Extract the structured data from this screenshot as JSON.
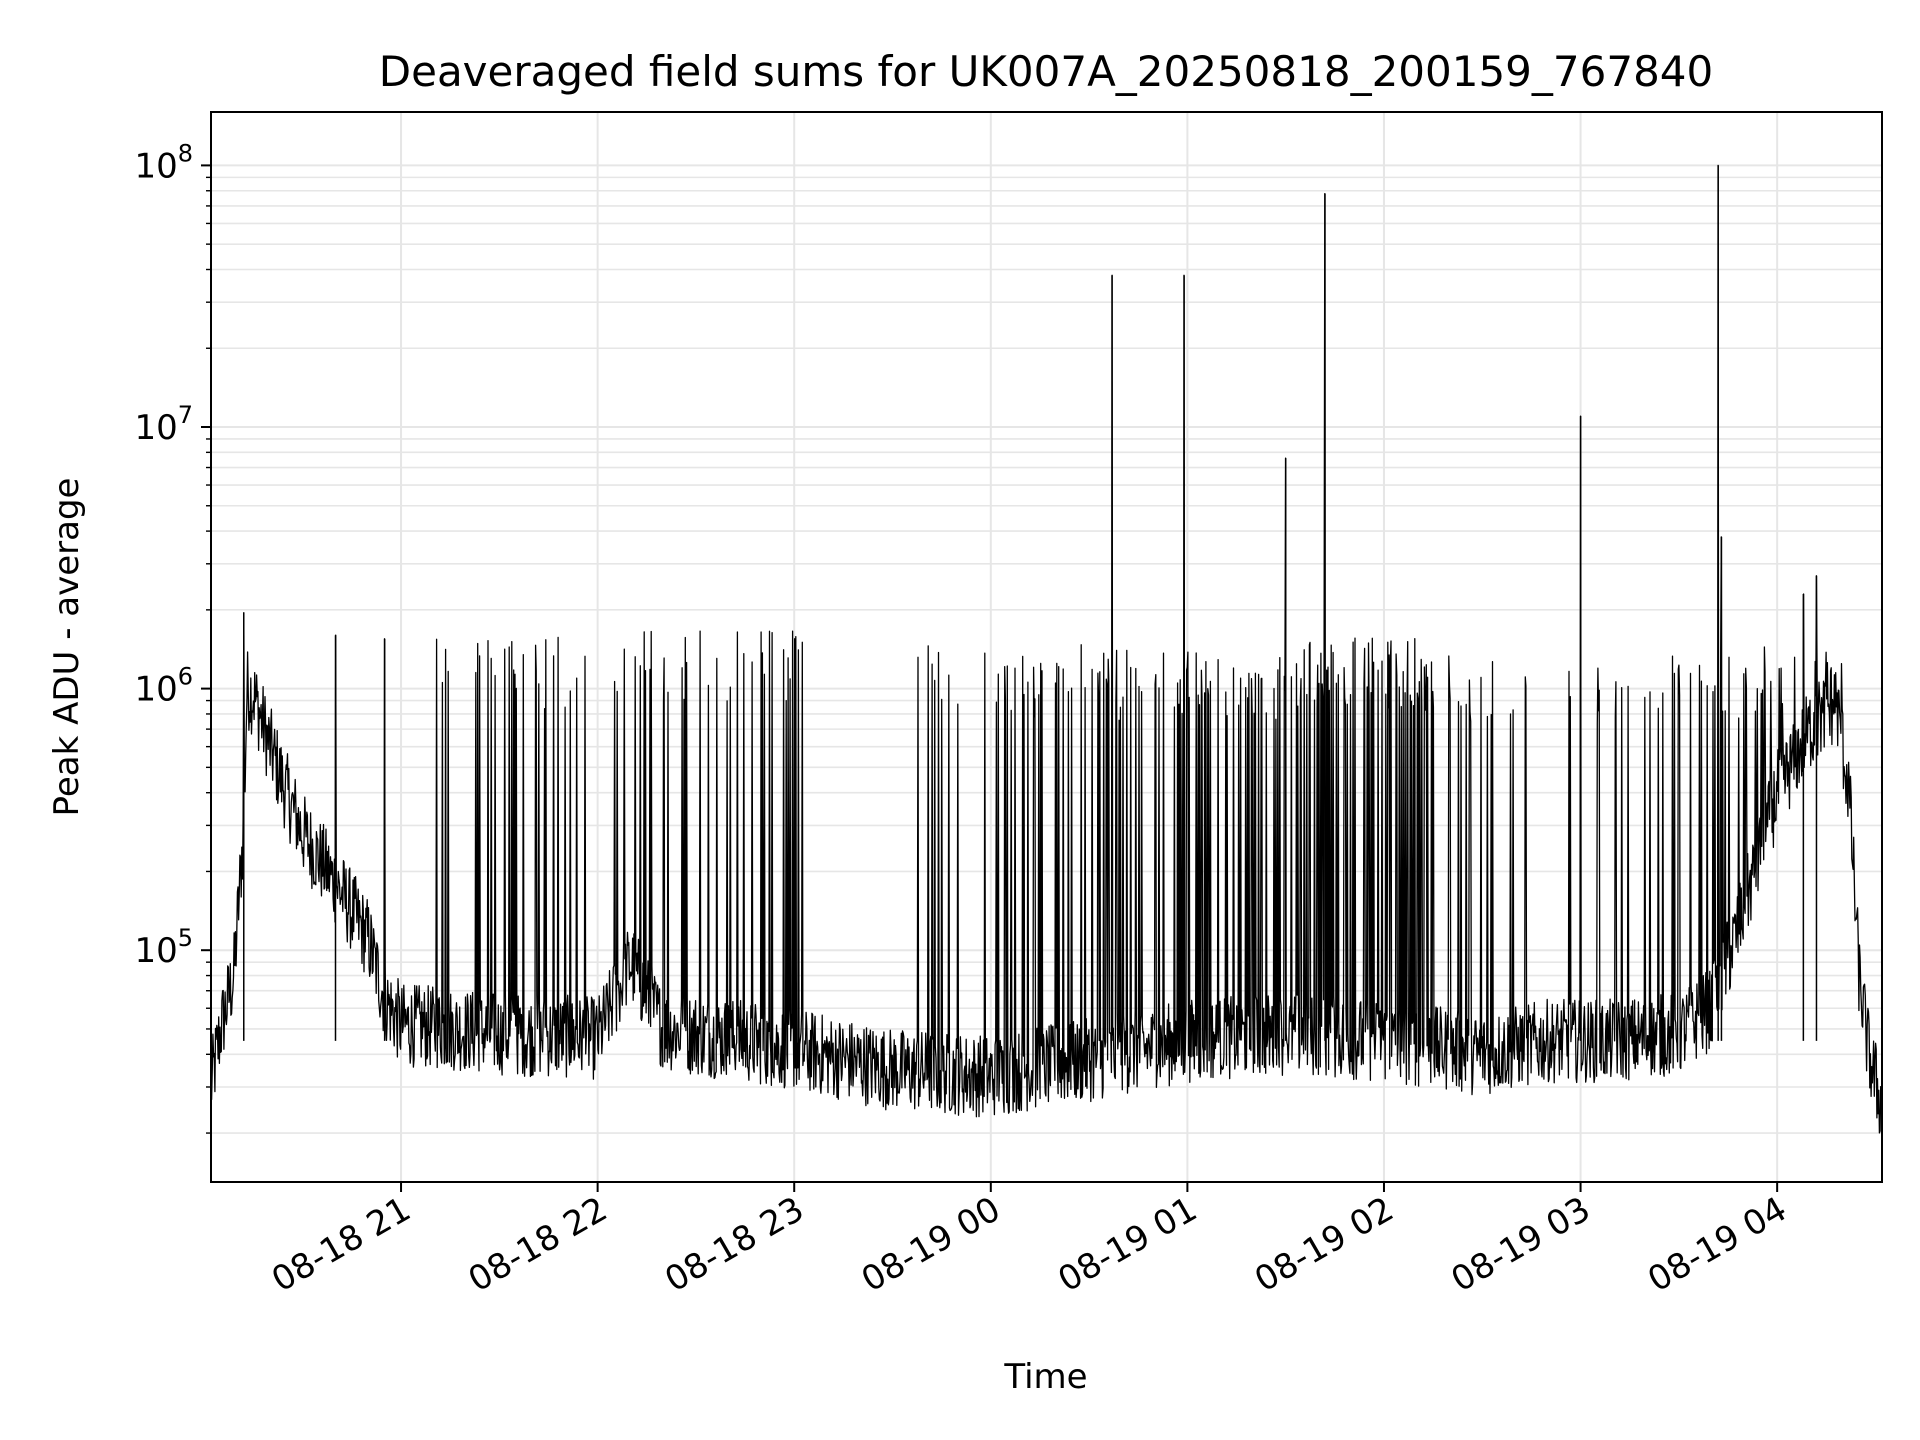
{
  "chart_data": {
    "type": "line",
    "title": "Deaveraged field sums for UK007A_20250818_200159_767840",
    "xlabel": "Time",
    "ylabel": "Peak ADU - average",
    "yscale": "log",
    "ylim": [
      13000,
      160000000
    ],
    "xlim": [
      "2025-08-18 20:02",
      "2025-08-19 04:32"
    ],
    "grid": true,
    "legend": "none",
    "line_color": "#000000",
    "x_ticks": [
      {
        "t": "2025-08-18 21:00",
        "label": "08-18 21"
      },
      {
        "t": "2025-08-18 22:00",
        "label": "08-18 22"
      },
      {
        "t": "2025-08-18 23:00",
        "label": "08-18 23"
      },
      {
        "t": "2025-08-19 00:00",
        "label": "08-19 00"
      },
      {
        "t": "2025-08-19 01:00",
        "label": "08-19 01"
      },
      {
        "t": "2025-08-19 02:00",
        "label": "08-19 02"
      },
      {
        "t": "2025-08-19 03:00",
        "label": "08-19 03"
      },
      {
        "t": "2025-08-19 04:00",
        "label": "08-19 04"
      }
    ],
    "y_ticks": [
      {
        "value": 100000,
        "base": "10",
        "exp": "5"
      },
      {
        "value": 1000000,
        "base": "10",
        "exp": "6"
      },
      {
        "value": 10000000,
        "base": "10",
        "exp": "7"
      },
      {
        "value": 100000000,
        "base": "10",
        "exp": "8"
      }
    ],
    "baseline": [
      [
        "2025-08-18 20:02",
        30000
      ],
      [
        "2025-08-18 20:05",
        50000
      ],
      [
        "2025-08-18 20:09",
        80000
      ],
      [
        "2025-08-18 20:12",
        300000
      ],
      [
        "2025-08-18 20:13",
        1000000
      ],
      [
        "2025-08-18 20:15",
        950000
      ],
      [
        "2025-08-18 20:20",
        600000
      ],
      [
        "2025-08-18 20:25",
        400000
      ],
      [
        "2025-08-18 20:30",
        280000
      ],
      [
        "2025-08-18 20:40",
        180000
      ],
      [
        "2025-08-18 20:50",
        110000
      ],
      [
        "2025-08-18 20:55",
        65000
      ],
      [
        "2025-08-18 21:00",
        52000
      ],
      [
        "2025-08-18 21:30",
        48000
      ],
      [
        "2025-08-18 22:00",
        46000
      ],
      [
        "2025-08-18 22:10",
        90000
      ],
      [
        "2025-08-18 22:20",
        50000
      ],
      [
        "2025-08-18 23:00",
        42000
      ],
      [
        "2025-08-18 23:30",
        35000
      ],
      [
        "2025-08-19 00:00",
        33000
      ],
      [
        "2025-08-19 00:30",
        38000
      ],
      [
        "2025-08-19 01:00",
        45000
      ],
      [
        "2025-08-19 01:30",
        48000
      ],
      [
        "2025-08-19 02:00",
        45000
      ],
      [
        "2025-08-19 02:30",
        40000
      ],
      [
        "2025-08-19 02:50",
        45000
      ],
      [
        "2025-08-19 03:10",
        45000
      ],
      [
        "2025-08-19 03:30",
        48000
      ],
      [
        "2025-08-19 03:40",
        60000
      ],
      [
        "2025-08-19 03:48",
        120000
      ],
      [
        "2025-08-19 04:00",
        400000
      ],
      [
        "2025-08-19 04:10",
        700000
      ],
      [
        "2025-08-19 04:18",
        900000
      ],
      [
        "2025-08-19 04:22",
        400000
      ],
      [
        "2025-08-19 04:25",
        80000
      ],
      [
        "2025-08-19 04:28",
        40000
      ],
      [
        "2025-08-19 04:32",
        25000
      ]
    ],
    "spike_bands": [
      {
        "start": "2025-08-18 21:10",
        "end": "2025-08-18 21:58",
        "count": 28,
        "peak": 1500000
      },
      {
        "start": "2025-08-18 22:05",
        "end": "2025-08-18 23:05",
        "count": 45,
        "peak": 1600000
      },
      {
        "start": "2025-08-18 23:35",
        "end": "2025-08-19 00:35",
        "count": 40,
        "peak": 1400000
      },
      {
        "start": "2025-08-19 00:35",
        "end": "2025-08-19 01:35",
        "count": 75,
        "peak": 1350000
      },
      {
        "start": "2025-08-19 01:35",
        "end": "2025-08-19 02:15",
        "count": 90,
        "peak": 1500000
      },
      {
        "start": "2025-08-19 02:15",
        "end": "2025-08-19 02:45",
        "count": 18,
        "peak": 1300000
      },
      {
        "start": "2025-08-19 02:55",
        "end": "2025-08-19 03:35",
        "count": 22,
        "peak": 1300000
      },
      {
        "start": "2025-08-19 03:35",
        "end": "2025-08-19 04:20",
        "count": 40,
        "peak": 1400000
      }
    ],
    "peaks": [
      {
        "t": "2025-08-18 20:12",
        "y": 1950000
      },
      {
        "t": "2025-08-18 20:40",
        "y": 1600000
      },
      {
        "t": "2025-08-18 20:55",
        "y": 1550000
      },
      {
        "t": "2025-08-19 00:37",
        "y": 38000000
      },
      {
        "t": "2025-08-19 00:59",
        "y": 38000000
      },
      {
        "t": "2025-08-19 01:30",
        "y": 7600000
      },
      {
        "t": "2025-08-19 01:42",
        "y": 78000000
      },
      {
        "t": "2025-08-19 03:00",
        "y": 11000000
      },
      {
        "t": "2025-08-19 03:42",
        "y": 100000000
      },
      {
        "t": "2025-08-19 03:43",
        "y": 3800000
      },
      {
        "t": "2025-08-19 04:12",
        "y": 2700000
      },
      {
        "t": "2025-08-19 04:08",
        "y": 2300000
      }
    ]
  }
}
